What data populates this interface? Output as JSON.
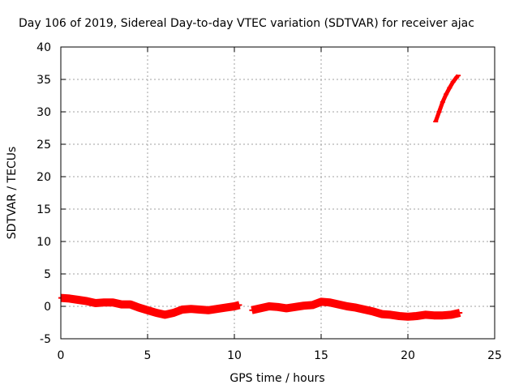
{
  "chart_data": {
    "type": "line",
    "title": "Day 106 of 2019, Sidereal Day-to-day VTEC variation (SDTVAR) for receiver ajac",
    "xlabel": "GPS time / hours",
    "ylabel": "SDTVAR / TECUs",
    "xlim": [
      0,
      25
    ],
    "ylim": [
      -5,
      40
    ],
    "xticks": [
      "0",
      "5",
      "10",
      "15",
      "20",
      "25"
    ],
    "yticks": [
      "-5",
      "0",
      "5",
      "10",
      "15",
      "20",
      "25",
      "30",
      "35",
      "40"
    ],
    "grid": true,
    "series_color": "#ff0000",
    "series": [
      {
        "segments": [
          [
            [
              0.0,
              1.3
            ],
            [
              0.5,
              1.2
            ],
            [
              1.0,
              1.0
            ],
            [
              1.5,
              0.8
            ],
            [
              2.0,
              0.5
            ],
            [
              2.5,
              0.6
            ],
            [
              3.0,
              0.6
            ],
            [
              3.5,
              0.3
            ],
            [
              4.0,
              0.3
            ],
            [
              4.5,
              -0.2
            ],
            [
              5.0,
              -0.6
            ],
            [
              5.5,
              -1.0
            ],
            [
              6.0,
              -1.3
            ],
            [
              6.5,
              -1.0
            ],
            [
              7.0,
              -0.5
            ],
            [
              7.5,
              -0.4
            ],
            [
              8.0,
              -0.5
            ],
            [
              8.5,
              -0.6
            ],
            [
              9.0,
              -0.4
            ],
            [
              9.5,
              -0.2
            ],
            [
              10.0,
              0.0
            ],
            [
              10.3,
              0.2
            ]
          ],
          [
            [
              11.0,
              -0.6
            ],
            [
              11.5,
              -0.3
            ],
            [
              12.0,
              0.0
            ],
            [
              12.5,
              -0.1
            ],
            [
              13.0,
              -0.3
            ],
            [
              13.5,
              -0.1
            ],
            [
              14.0,
              0.1
            ],
            [
              14.5,
              0.2
            ],
            [
              15.0,
              0.7
            ],
            [
              15.5,
              0.6
            ],
            [
              16.0,
              0.3
            ],
            [
              16.5,
              0.0
            ],
            [
              17.0,
              -0.2
            ],
            [
              17.5,
              -0.5
            ],
            [
              18.0,
              -0.8
            ],
            [
              18.5,
              -1.2
            ],
            [
              19.0,
              -1.3
            ],
            [
              19.5,
              -1.5
            ],
            [
              20.0,
              -1.6
            ],
            [
              20.5,
              -1.5
            ],
            [
              21.0,
              -1.3
            ],
            [
              21.5,
              -1.4
            ],
            [
              22.0,
              -1.4
            ],
            [
              22.5,
              -1.3
            ],
            [
              23.0,
              -1.0
            ]
          ],
          [
            [
              21.6,
              28.5
            ],
            [
              21.8,
              30.0
            ],
            [
              22.0,
              31.5
            ],
            [
              22.2,
              32.7
            ],
            [
              22.4,
              33.7
            ],
            [
              22.6,
              34.6
            ],
            [
              22.8,
              35.3
            ],
            [
              22.9,
              35.6
            ]
          ]
        ]
      }
    ]
  }
}
